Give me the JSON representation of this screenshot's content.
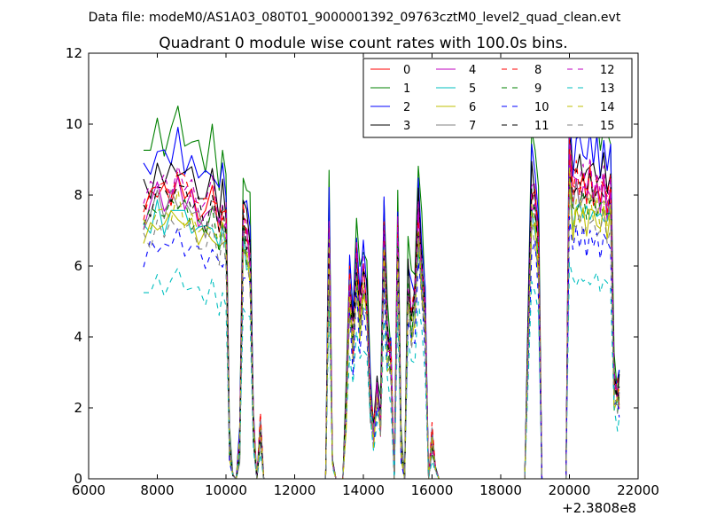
{
  "header": {
    "suptitle": "Data file: modeM0/AS1A03_080T01_9000001392_09763cztM0_level2_quad_clean.evt"
  },
  "chart_data": {
    "type": "line",
    "title": "Quadrant 0 module wise count rates with 100.0s bins.",
    "xlabel": "",
    "ylabel": "",
    "x_offset_label": "+2.3808e8",
    "xlim": [
      6000,
      22000
    ],
    "ylim": [
      0,
      12
    ],
    "xticks": [
      6000,
      8000,
      10000,
      12000,
      14000,
      16000,
      18000,
      20000,
      22000
    ],
    "yticks": [
      0,
      2,
      4,
      6,
      8,
      10,
      12
    ],
    "xtick_labels": [
      "6000",
      "8000",
      "10000",
      "12000",
      "14000",
      "16000",
      "18000",
      "20000",
      "22000"
    ],
    "ytick_labels": [
      "0",
      "2",
      "4",
      "6",
      "8",
      "10",
      "12"
    ],
    "grid": false,
    "legend_location": "top-right",
    "legend_columns": 4,
    "base_profile": {
      "x": [
        7600,
        7800,
        8000,
        8200,
        8400,
        8600,
        8800,
        9000,
        9200,
        9400,
        9600,
        9800,
        9900,
        10000,
        10100,
        10200,
        10300,
        10400,
        10500,
        10600,
        10700,
        10800,
        10900,
        11000,
        11100,
        11200,
        12000,
        12600,
        12900,
        13000,
        13100,
        13200,
        13300,
        13400,
        13500,
        13600,
        13700,
        13800,
        13900,
        14000,
        14100,
        14200,
        14300,
        14400,
        14500,
        14600,
        14700,
        14800,
        14900,
        15000,
        15100,
        15200,
        15300,
        15400,
        15500,
        15600,
        15700,
        15800,
        15900,
        16000,
        16100,
        16200,
        16300,
        16400,
        16500,
        16600,
        16700,
        16800,
        16900,
        17000,
        18000,
        18700,
        18900,
        19000,
        19100,
        19200,
        19300,
        19400,
        19500,
        19700,
        19900,
        20000,
        20100,
        20200,
        20300,
        20400,
        20500,
        20600,
        20700,
        20800,
        20900,
        21000,
        21100,
        21200,
        21300,
        21400,
        21450
      ],
      "y": [
        8.0,
        8.3,
        8.7,
        8.4,
        8.6,
        8.9,
        8.5,
        8.4,
        8.1,
        7.9,
        8.4,
        7.6,
        8.0,
        7.7,
        1.0,
        0.1,
        0.0,
        0.9,
        7.7,
        7.2,
        6.8,
        1.5,
        0.0,
        1.5,
        0.0,
        0.0,
        0.0,
        0.0,
        0.0,
        7.3,
        0.5,
        0.0,
        0.0,
        0.0,
        2.0,
        5.8,
        4.0,
        6.6,
        5.0,
        6.0,
        5.3,
        2.3,
        1.4,
        2.5,
        1.7,
        7.2,
        4.0,
        3.6,
        0.0,
        7.3,
        1.0,
        0.0,
        5.9,
        4.8,
        5.3,
        7.8,
        6.3,
        4.8,
        0.0,
        1.2,
        0.3,
        0.0,
        0.0,
        0.0,
        0.0,
        0.0,
        0.0,
        0.0,
        0.0,
        0.0,
        0.0,
        0.0,
        8.5,
        8.3,
        7.0,
        0.0,
        0.0,
        0.0,
        0.0,
        0.0,
        0.0,
        9.8,
        8.4,
        8.9,
        8.7,
        8.8,
        8.5,
        8.9,
        8.6,
        8.7,
        8.4,
        8.8,
        8.3,
        8.6,
        2.7,
        2.5,
        2.5
      ]
    },
    "series": [
      {
        "name": "0",
        "color": "#ff0000",
        "dash": "solid",
        "scale": 0.94
      },
      {
        "name": "1",
        "color": "#008000",
        "dash": "solid",
        "scale": 1.13
      },
      {
        "name": "2",
        "color": "#0000ff",
        "dash": "solid",
        "scale": 1.06
      },
      {
        "name": "3",
        "color": "#000000",
        "dash": "solid",
        "scale": 1.0
      },
      {
        "name": "4",
        "color": "#bf00bf",
        "dash": "solid",
        "scale": 0.92
      },
      {
        "name": "5",
        "color": "#00bfbf",
        "dash": "solid",
        "scale": 0.86
      },
      {
        "name": "6",
        "color": "#bfbf00",
        "dash": "solid",
        "scale": 0.84
      },
      {
        "name": "7",
        "color": "#808080",
        "dash": "solid",
        "scale": 0.9
      },
      {
        "name": "8",
        "color": "#ff0000",
        "dash": "dashed",
        "scale": 0.96
      },
      {
        "name": "9",
        "color": "#008000",
        "dash": "dashed",
        "scale": 0.88
      },
      {
        "name": "10",
        "color": "#0000ff",
        "dash": "dashed",
        "scale": 0.77
      },
      {
        "name": "11",
        "color": "#000000",
        "dash": "dashed",
        "scale": 0.93
      },
      {
        "name": "12",
        "color": "#bf00bf",
        "dash": "dashed",
        "scale": 0.97
      },
      {
        "name": "13",
        "color": "#00bfbf",
        "dash": "dashed",
        "scale": 0.64
      },
      {
        "name": "14",
        "color": "#bfbf00",
        "dash": "dashed",
        "scale": 0.87
      },
      {
        "name": "15",
        "color": "#808080",
        "dash": "dashed",
        "scale": 0.82
      }
    ]
  }
}
